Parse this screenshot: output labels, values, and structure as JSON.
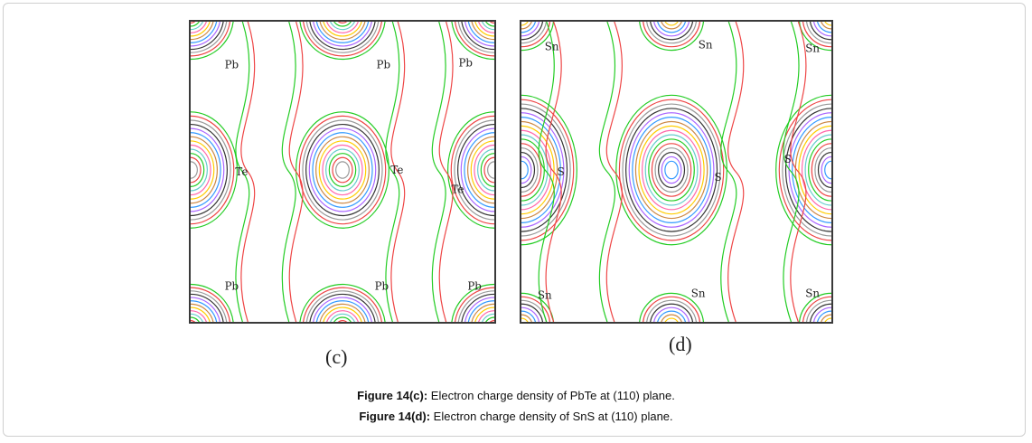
{
  "figure": {
    "panels": [
      {
        "id": "c",
        "label": "(c)",
        "atom_labels": [
          "Pb",
          "Pb",
          "Pb",
          "Te",
          "Te",
          "Te",
          "Pb",
          "Pb",
          "Pb"
        ]
      },
      {
        "id": "d",
        "label": "(d)",
        "atom_labels": [
          "Sn",
          "Sn",
          "Sn",
          "S",
          "S",
          "S",
          "Sn",
          "Sn",
          "Sn"
        ]
      }
    ],
    "captions": [
      {
        "bold": "Figure 14(c):",
        "text": " Electron charge density of PbTe at (110) plane."
      },
      {
        "bold": "Figure 14(d):",
        "text": " Electron charge density of SnS at (110) plane."
      }
    ],
    "contour_colors": [
      "#22cc22",
      "#ee4444",
      "#999999",
      "#333333",
      "#aa66ff",
      "#3399ff",
      "#cc8844",
      "#ffcc00",
      "#ff66aa",
      "#66cccc"
    ]
  }
}
